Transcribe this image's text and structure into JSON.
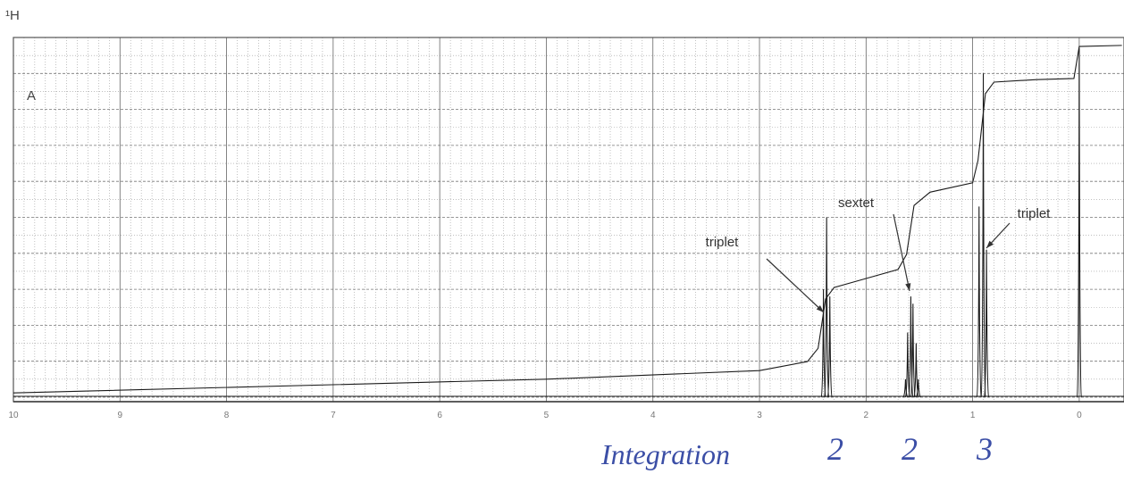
{
  "chart_data": {
    "type": "spectrum",
    "title": "¹H",
    "panel_label": "A",
    "xlim": [
      10,
      -0.42
    ],
    "xticks": [
      10,
      9,
      8,
      7,
      6,
      5,
      4,
      3,
      2,
      1,
      0
    ],
    "ylim": [
      0,
      100
    ],
    "yticks": [
      0,
      10,
      20,
      30,
      40,
      50,
      60,
      70,
      80,
      90,
      100
    ],
    "grid": true,
    "color": "#1a1a1a",
    "peaks": {
      "x": [
        2.4,
        2.37,
        2.34,
        1.63,
        1.61,
        1.58,
        1.56,
        1.53,
        1.51,
        0.94,
        0.9,
        0.87,
        0
      ],
      "values": [
        30,
        50,
        28,
        5,
        18,
        28,
        26,
        15,
        5,
        53,
        90,
        41,
        97
      ]
    },
    "integral": {
      "x": [
        10,
        5,
        3,
        2.55,
        2.45,
        2.38,
        2.3,
        2.0,
        1.7,
        1.62,
        1.55,
        1.4,
        1.0,
        0.95,
        0.88,
        0.8,
        0.4,
        0.05,
        0.0,
        -0.4
      ],
      "values": [
        1.2,
        5,
        7.4,
        9.9,
        13.6,
        27.3,
        30.5,
        33,
        35.5,
        39.7,
        53.3,
        57,
        59.6,
        65.8,
        84.4,
        87.6,
        88.3,
        88.6,
        97.5,
        97.8
      ]
    },
    "annotations": [
      "triplet",
      "sextet",
      "triplet"
    ],
    "integration": {
      "label": "Integration",
      "values": [
        2,
        2,
        3
      ]
    }
  }
}
